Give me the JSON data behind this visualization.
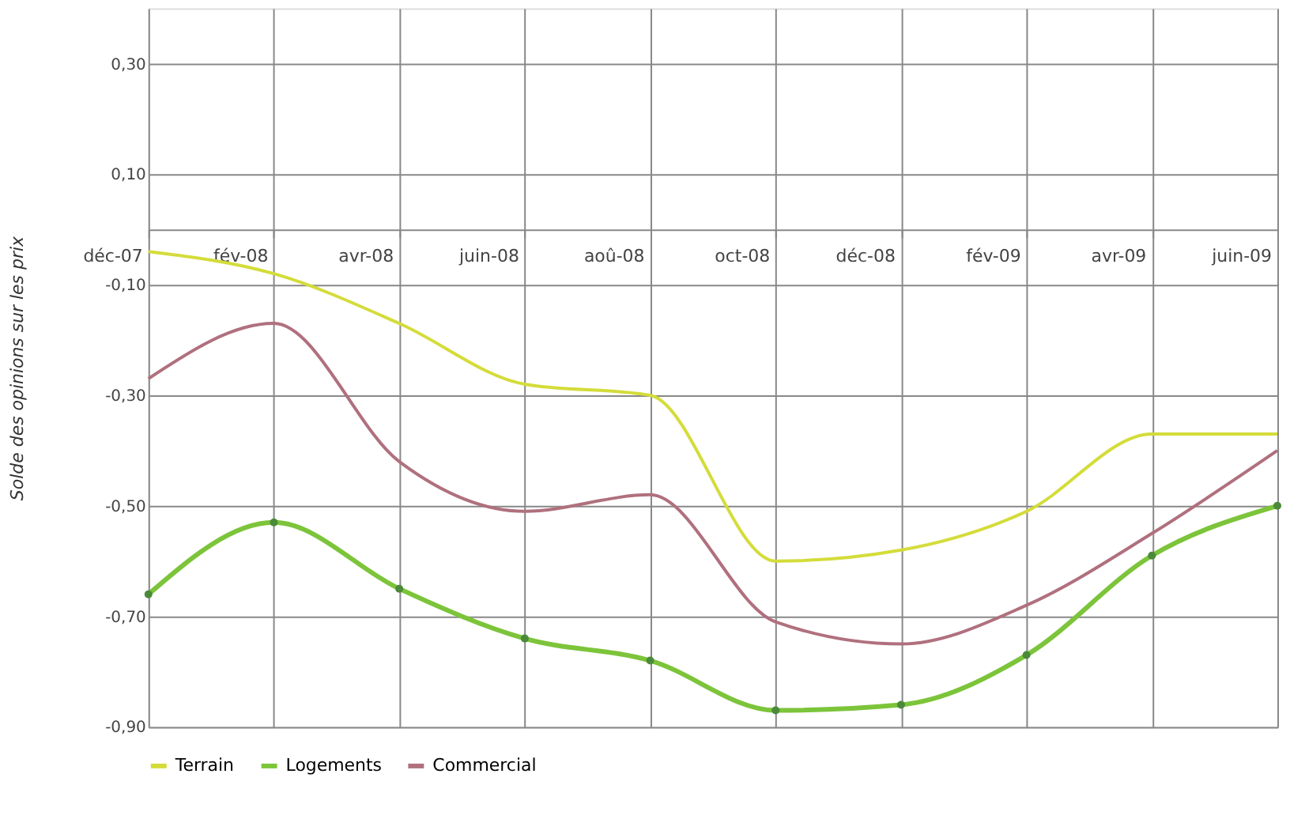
{
  "chart_data": {
    "type": "line",
    "ylabel": "Solde des opinions sur les prix",
    "categories": [
      "déc-07",
      "fév-08",
      "avr-08",
      "juin-08",
      "aoû-08",
      "oct-08",
      "déc-08",
      "fév-09",
      "avr-09",
      "juin-09"
    ],
    "series": [
      {
        "name": "Terrain",
        "color": "#d4dc3a",
        "marker": "none",
        "values": [
          -0.04,
          -0.08,
          -0.17,
          -0.28,
          -0.3,
          -0.6,
          -0.58,
          -0.51,
          -0.37,
          -0.37
        ]
      },
      {
        "name": "Logements",
        "color": "#7cc43a",
        "marker": "circle",
        "values": [
          -0.66,
          -0.53,
          -0.65,
          -0.74,
          -0.78,
          -0.87,
          -0.86,
          -0.77,
          -0.59,
          -0.5
        ]
      },
      {
        "name": "Commercial",
        "color": "#b0707e",
        "marker": "none",
        "values": [
          -0.27,
          -0.17,
          -0.42,
          -0.51,
          -0.48,
          -0.71,
          -0.75,
          -0.68,
          -0.55,
          -0.4
        ]
      }
    ],
    "ylim": [
      -0.9,
      0.4
    ],
    "yticks": [
      {
        "value": 0.3,
        "label": "0,30"
      },
      {
        "value": 0.1,
        "label": "0,10"
      },
      {
        "value": -0.1,
        "label": "-0,10"
      },
      {
        "value": -0.3,
        "label": "-0,30"
      },
      {
        "value": -0.5,
        "label": "-0,50"
      },
      {
        "value": -0.7,
        "label": "-0,70"
      },
      {
        "value": -0.9,
        "label": "-0,90"
      }
    ],
    "grid": true,
    "legend": "bottom",
    "line_style": "solid"
  }
}
